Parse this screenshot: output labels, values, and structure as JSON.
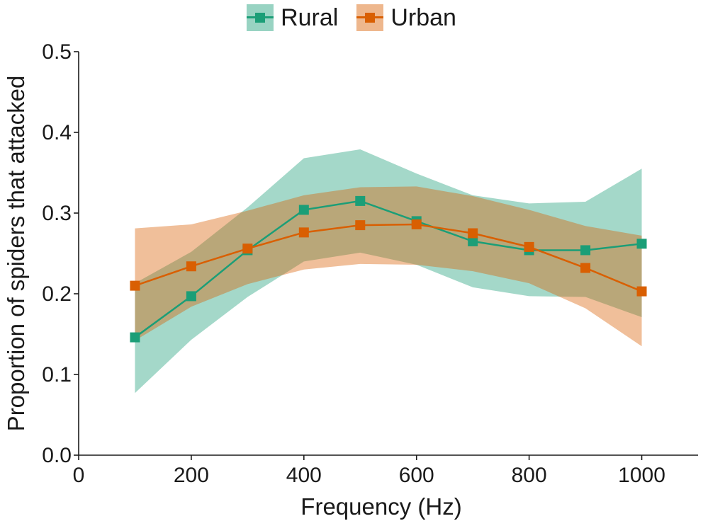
{
  "chart_data": {
    "type": "line",
    "xlabel": "Frequency (Hz)",
    "ylabel": "Proportion of spiders that attacked",
    "xlim": [
      0,
      1100
    ],
    "ylim": [
      0,
      0.5
    ],
    "xticks": [
      0,
      200,
      400,
      600,
      800,
      1000
    ],
    "yticks": [
      0.0,
      0.1,
      0.2,
      0.3,
      0.4,
      0.5
    ],
    "xtick_labels": [
      "0",
      "200",
      "400",
      "600",
      "800",
      "1000"
    ],
    "ytick_labels": [
      "0.0",
      "0.1",
      "0.2",
      "0.3",
      "0.4",
      "0.5"
    ],
    "grid": false,
    "legend_position": "top-center",
    "x": [
      100,
      200,
      300,
      400,
      500,
      600,
      700,
      800,
      900,
      1000
    ],
    "series": [
      {
        "name": "Rural",
        "color": "#1b9e77",
        "values": [
          0.146,
          0.197,
          0.254,
          0.304,
          0.315,
          0.29,
          0.265,
          0.254,
          0.254,
          0.262
        ],
        "ci_lower": [
          0.077,
          0.143,
          0.196,
          0.24,
          0.251,
          0.236,
          0.208,
          0.197,
          0.196,
          0.171
        ],
        "ci_upper": [
          0.213,
          0.252,
          0.307,
          0.368,
          0.379,
          0.349,
          0.322,
          0.312,
          0.314,
          0.355
        ]
      },
      {
        "name": "Urban",
        "color": "#d95f02",
        "values": [
          0.21,
          0.234,
          0.256,
          0.276,
          0.285,
          0.286,
          0.275,
          0.258,
          0.232,
          0.203
        ],
        "ci_lower": [
          0.142,
          0.184,
          0.212,
          0.23,
          0.237,
          0.236,
          0.228,
          0.213,
          0.182,
          0.135
        ],
        "ci_upper": [
          0.281,
          0.286,
          0.303,
          0.322,
          0.332,
          0.333,
          0.321,
          0.304,
          0.284,
          0.272
        ]
      }
    ]
  }
}
